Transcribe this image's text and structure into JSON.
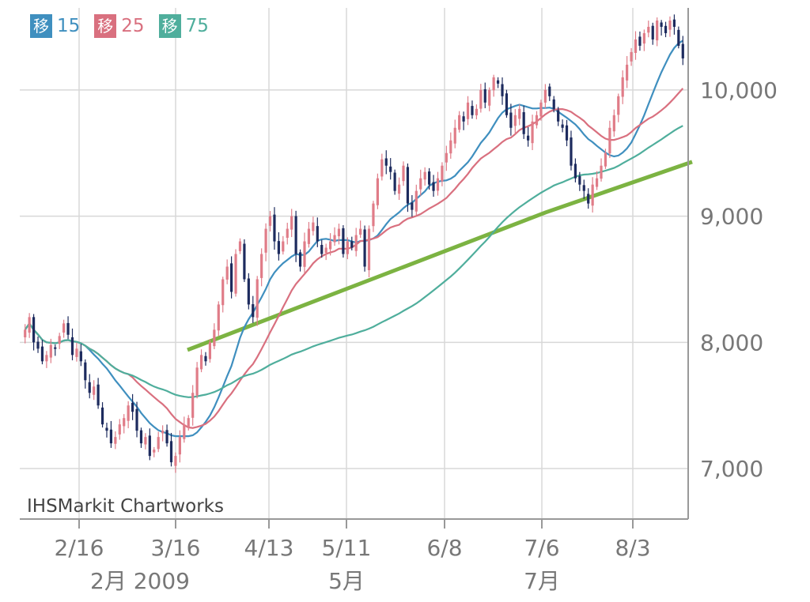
{
  "legend": [
    {
      "badge": "移",
      "value": "15",
      "color": "#3f8fbf"
    },
    {
      "badge": "移",
      "value": "25",
      "color": "#d9707f"
    },
    {
      "badge": "移",
      "value": "75",
      "color": "#4fae9c"
    }
  ],
  "watermark": "IHSMarkit Chartworks",
  "chart_data": {
    "type": "candlestick",
    "y_range": [
      6600,
      10650
    ],
    "y_ticks": [
      {
        "value": 7000,
        "label": "7,000"
      },
      {
        "value": 8000,
        "label": "8,000"
      },
      {
        "value": 9000,
        "label": "9,000"
      },
      {
        "value": 10000,
        "label": "10,000"
      }
    ],
    "x_ticks": [
      {
        "label": "2/16",
        "sub": "2月 2009"
      },
      {
        "label": "3/16",
        "sub": ""
      },
      {
        "label": "4/13",
        "sub": ""
      },
      {
        "label": "5/11",
        "sub": "5月"
      },
      {
        "label": "6/8",
        "sub": ""
      },
      {
        "label": "7/6",
        "sub": "7月"
      },
      {
        "label": "8/3",
        "sub": ""
      }
    ],
    "colors": {
      "up": "#e07c88",
      "down": "#1d2b5e",
      "trend": "#7cb342",
      "ma15": "#3f8fbf",
      "ma25": "#d9707f",
      "ma75": "#4fae9c",
      "grid": "#d8d8d8",
      "axis_text": "#777777"
    },
    "closes": [
      8100,
      8200,
      8000,
      7950,
      7850,
      7900,
      7980,
      7960,
      8050,
      8150,
      8060,
      7900,
      7950,
      7850,
      7700,
      7600,
      7650,
      7500,
      7350,
      7300,
      7200,
      7250,
      7350,
      7400,
      7500,
      7450,
      7300,
      7200,
      7250,
      7100,
      7150,
      7250,
      7300,
      7200,
      7050,
      7100,
      7250,
      7350,
      7400,
      7600,
      7800,
      7900,
      7850,
      8000,
      8100,
      8300,
      8500,
      8600,
      8400,
      8700,
      8800,
      8500,
      8300,
      8200,
      8500,
      8700,
      8900,
      9000,
      8800,
      8700,
      8800,
      8900,
      9000,
      8700,
      8600,
      8800,
      8900,
      8950,
      8800,
      8700,
      8750,
      8800,
      8850,
      8900,
      8700,
      8800,
      8750,
      8850,
      8900,
      8600,
      8900,
      9100,
      9300,
      9450,
      9400,
      9350,
      9200,
      9250,
      9400,
      9100,
      9050,
      9200,
      9300,
      9350,
      9250,
      9200,
      9300,
      9400,
      9500,
      9600,
      9700,
      9800,
      9750,
      9900,
      9800,
      9850,
      10000,
      9900,
      10000,
      10100,
      10050,
      9950,
      9800,
      9700,
      9800,
      9850,
      9650,
      9600,
      9750,
      9800,
      9900,
      10000,
      9950,
      9850,
      9750,
      9700,
      9600,
      9400,
      9300,
      9250,
      9200,
      9100,
      9250,
      9300,
      9400,
      9500,
      9700,
      9800,
      9950,
      10100,
      10200,
      10300,
      10400,
      10350,
      10450,
      10500,
      10400,
      10550,
      10500,
      10450,
      10550,
      10500,
      10350,
      10250
    ],
    "trend": {
      "x_start": 237,
      "x_end": 875,
      "y_start": 7940,
      "y_end": 9430,
      "mid_x": 690,
      "mid_y": 9030
    }
  }
}
